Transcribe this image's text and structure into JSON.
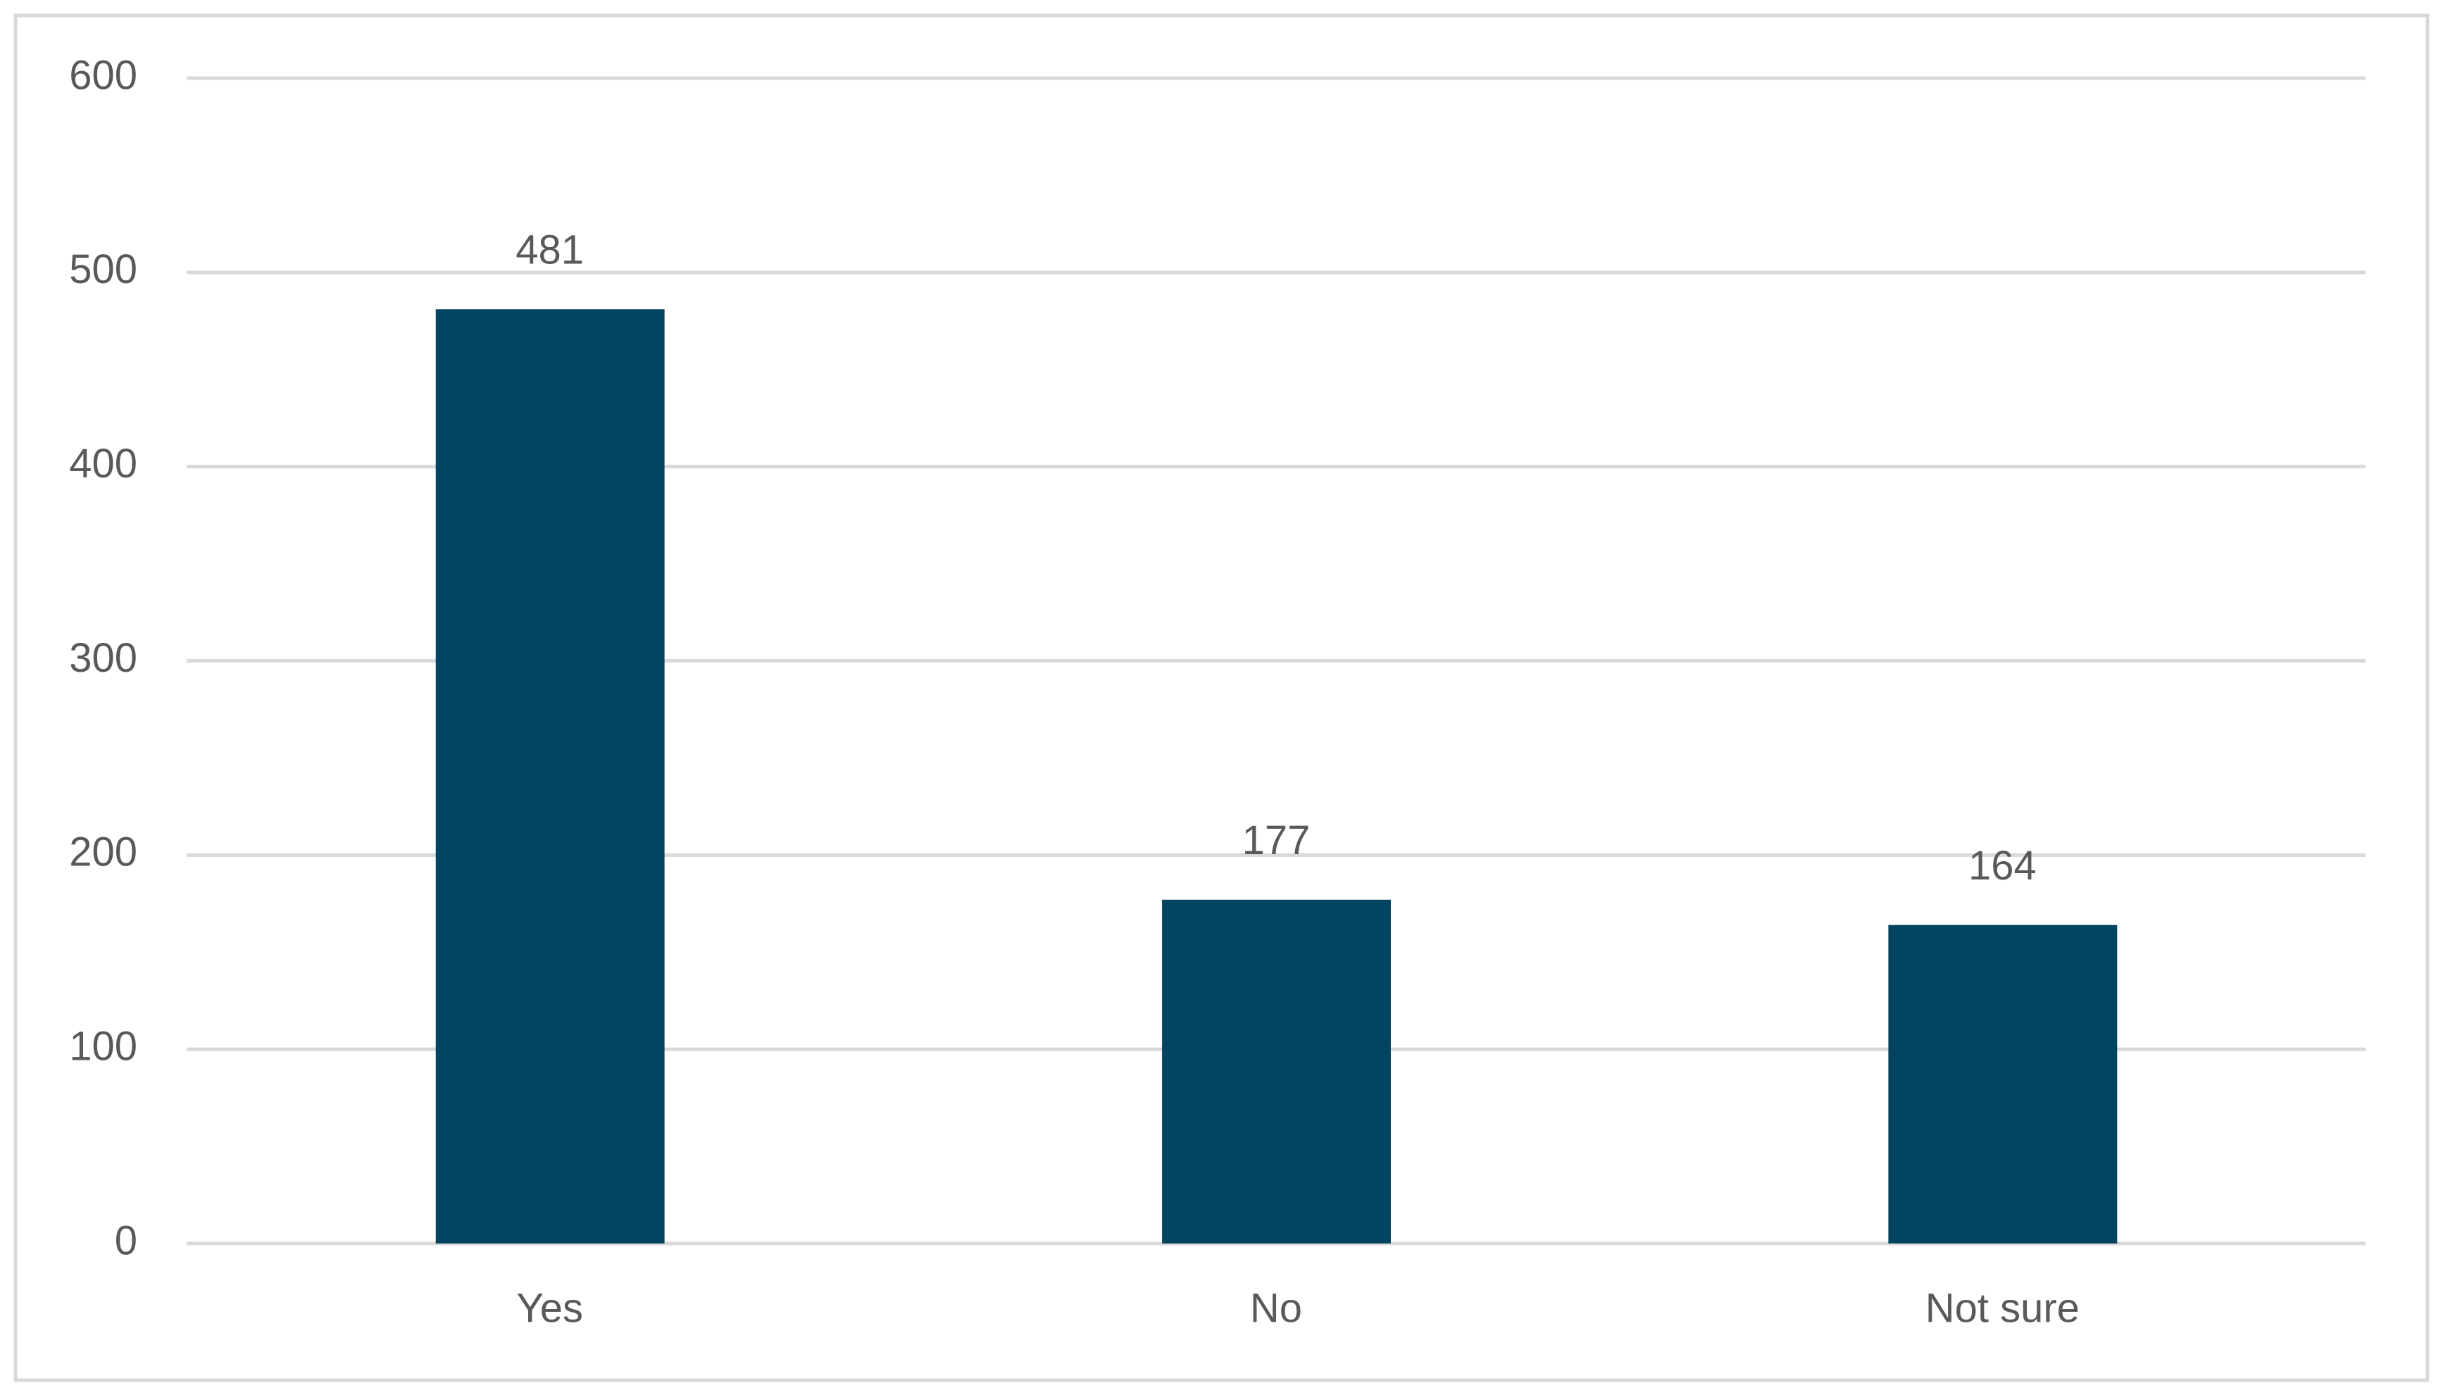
{
  "chart_data": {
    "type": "bar",
    "categories": [
      "Yes",
      "No",
      "Not sure"
    ],
    "values": [
      481,
      177,
      164
    ],
    "color": "#02435f",
    "ylim": [
      0,
      600
    ],
    "yticks": [
      0,
      100,
      200,
      300,
      400,
      500,
      600
    ],
    "grid": true,
    "data_labels": true
  }
}
